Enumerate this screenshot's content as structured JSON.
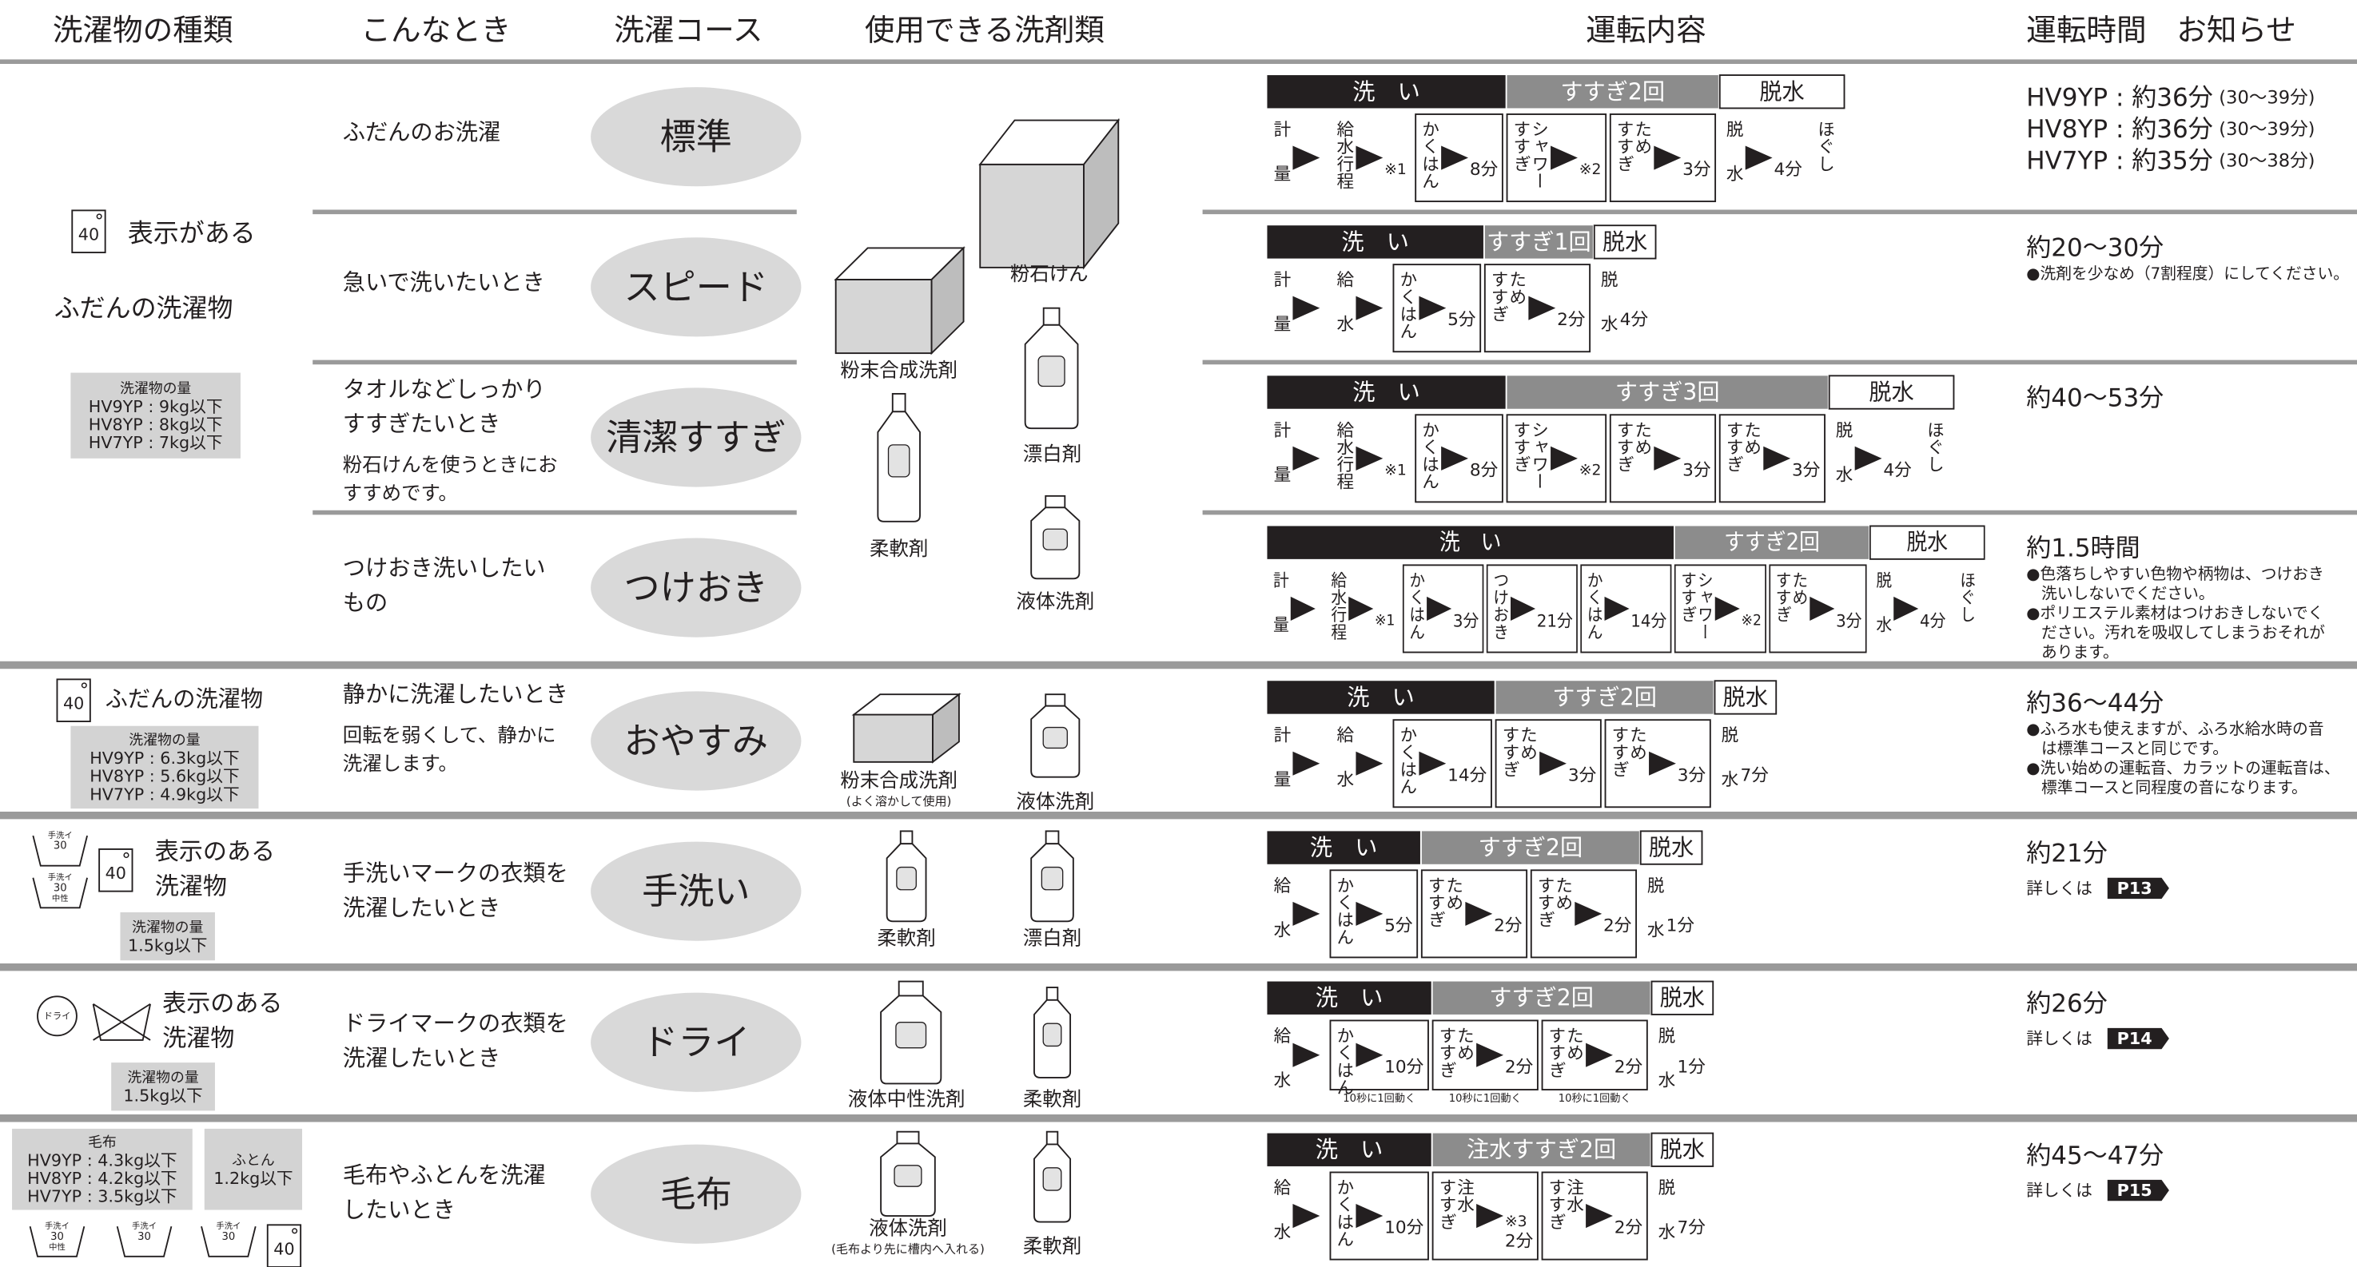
{
  "header": [
    "洗濯物の種類",
    "こんなとき",
    "洗濯コース",
    "使用できる洗剤類",
    "運転内容",
    "運転時間　お知らせ"
  ],
  "groups": [
    {
      "type": {
        "icons": [
          [
            "40"
          ]
        ],
        "labels": [
          "表示がある",
          "ふだんの洗濯物"
        ],
        "boxes": [
          [
            "洗濯物の量",
            "HV9YP : 9kg以下",
            "HV8YP : 8kg以下",
            "HV7YP : 7kg以下"
          ]
        ]
      },
      "detergents": [
        {
          "label": "粉石けん"
        },
        {
          "label": "粉末合成洗剤"
        },
        {
          "label": "漂白剤"
        },
        {
          "label": "柔軟剤"
        },
        {
          "label": "液体洗剤"
        }
      ],
      "courses": [
        {
          "situation": [
            "ふだんのお洗濯"
          ],
          "name": "標準",
          "process": [
            {
              "label": "洗　い",
              "color": "#231f20",
              "steps": [
                {
                  "lines": [
                    "計量"
                  ]
                },
                {
                  "lines": [
                    "給水行程"
                  ],
                  "mark": "※1"
                },
                {
                  "lines": [
                    "かくはん"
                  ],
                  "time": "8分"
                }
              ]
            },
            {
              "label": "すすぎ2回",
              "color": "#8c8c8c",
              "steps": [
                {
                  "lines": [
                    "シャワー",
                    "すすぎ"
                  ],
                  "mark": "※2"
                },
                {
                  "lines": [
                    "ため",
                    "すすぎ"
                  ],
                  "time": "3分"
                }
              ]
            },
            {
              "label": "脱水",
              "color": "#ffffff",
              "steps": [
                {
                  "lines": [
                    "脱水"
                  ],
                  "time": "4分"
                },
                {
                  "lines": [
                    "ほぐし"
                  ]
                }
              ]
            }
          ],
          "time": [
            {
              "main": "HV9YP : 約36分",
              "range": "(30～39分)"
            },
            {
              "main": "HV8YP : 約36分",
              "range": "(30～39分)"
            },
            {
              "main": "HV7YP : 約35分",
              "range": "(30～38分)"
            }
          ]
        },
        {
          "situation": [
            "急いで洗いたいとき"
          ],
          "name": "スピード",
          "process": [
            {
              "label": "洗　い",
              "color": "#231f20",
              "steps": [
                {
                  "lines": [
                    "計量"
                  ]
                },
                {
                  "lines": [
                    "給水"
                  ]
                },
                {
                  "lines": [
                    "かくはん"
                  ],
                  "time": "5分"
                }
              ]
            },
            {
              "label": "すすぎ1回",
              "color": "#8c8c8c",
              "steps": [
                {
                  "lines": [
                    "ため",
                    "すすぎ"
                  ],
                  "time": "2分"
                }
              ]
            },
            {
              "label": "脱水",
              "color": "#ffffff",
              "steps": [
                {
                  "lines": [
                    "脱水"
                  ],
                  "time": "4分"
                }
              ]
            }
          ],
          "time": [
            {
              "main": "約20～30分"
            }
          ],
          "notes": [
            "●洗剤を少なめ（7割程度）にしてください。"
          ]
        },
        {
          "situation": [
            "タオルなどしっかり",
            "すすぎたいとき"
          ],
          "note": [
            "粉石けんを使うときにお",
            "すすめです。"
          ],
          "name": "清潔すすぎ",
          "process": [
            {
              "label": "洗　い",
              "color": "#231f20",
              "steps": [
                {
                  "lines": [
                    "計量"
                  ]
                },
                {
                  "lines": [
                    "給水行程"
                  ],
                  "mark": "※1"
                },
                {
                  "lines": [
                    "かくはん"
                  ],
                  "time": "8分"
                }
              ]
            },
            {
              "label": "すすぎ3回",
              "color": "#8c8c8c",
              "steps": [
                {
                  "lines": [
                    "シャワー",
                    "すすぎ"
                  ],
                  "mark": "※2"
                },
                {
                  "lines": [
                    "ため",
                    "すすぎ"
                  ],
                  "time": "3分"
                },
                {
                  "lines": [
                    "ため",
                    "すすぎ"
                  ],
                  "time": "3分"
                }
              ]
            },
            {
              "label": "脱水",
              "color": "#ffffff",
              "steps": [
                {
                  "lines": [
                    "脱水"
                  ],
                  "time": "4分"
                },
                {
                  "lines": [
                    "ほぐし"
                  ]
                }
              ]
            }
          ],
          "time": [
            {
              "main": "約40～53分"
            }
          ]
        },
        {
          "situation": [
            "つけおき洗いしたい",
            "もの"
          ],
          "name": "つけおき",
          "process": [
            {
              "label": "洗　い",
              "color": "#231f20",
              "steps": [
                {
                  "lines": [
                    "計量"
                  ]
                },
                {
                  "lines": [
                    "給水行程"
                  ],
                  "mark": "※1"
                },
                {
                  "lines": [
                    "かくはん"
                  ],
                  "time": "3分"
                },
                {
                  "lines": [
                    "つけおき"
                  ],
                  "time": "21分"
                },
                {
                  "lines": [
                    "かくはん"
                  ],
                  "time": "14分"
                }
              ]
            },
            {
              "label": "すすぎ2回",
              "color": "#8c8c8c",
              "steps": [
                {
                  "lines": [
                    "シャワー",
                    "すすぎ"
                  ],
                  "mark": "※2"
                },
                {
                  "lines": [
                    "ため",
                    "すすぎ"
                  ],
                  "time": "3分"
                }
              ]
            },
            {
              "label": "脱水",
              "color": "#ffffff",
              "steps": [
                {
                  "lines": [
                    "脱水"
                  ],
                  "time": "4分"
                },
                {
                  "lines": [
                    "ほぐし"
                  ]
                }
              ]
            }
          ],
          "time": [
            {
              "main": "約1.5時間"
            }
          ],
          "notes": [
            "●色落ちしやすい色物や柄物は、つけおき",
            "洗いしないでください。",
            "●ポリエステル素材はつけおきしないでく",
            "ださい。汚れを吸収してしまうおそれが",
            "あります。"
          ]
        }
      ]
    },
    {
      "type": {
        "icons": [
          [
            "40"
          ]
        ],
        "labels": [
          "ふだんの洗濯物"
        ],
        "boxes": [
          [
            "洗濯物の量",
            "HV9YP : 6.3kg以下",
            "HV8YP : 5.6kg以下",
            "HV7YP : 4.9kg以下"
          ]
        ]
      },
      "detergents": [
        {
          "label": "粉末合成洗剤",
          "note": "(よく溶かして使用)"
        },
        {
          "label": "液体洗剤"
        }
      ],
      "courses": [
        {
          "situation": [
            "静かに洗濯したいとき"
          ],
          "note": [
            "回転を弱くして、静かに",
            "洗濯します。"
          ],
          "name": "おやすみ",
          "process": [
            {
              "label": "洗　い",
              "color": "#231f20",
              "steps": [
                {
                  "lines": [
                    "計量"
                  ]
                },
                {
                  "lines": [
                    "給水"
                  ]
                },
                {
                  "lines": [
                    "かくはん"
                  ],
                  "time": "14分"
                }
              ]
            },
            {
              "label": "すすぎ2回",
              "color": "#8c8c8c",
              "steps": [
                {
                  "lines": [
                    "ため",
                    "すすぎ"
                  ],
                  "time": "3分"
                },
                {
                  "lines": [
                    "ため",
                    "すすぎ"
                  ],
                  "time": "3分"
                }
              ]
            },
            {
              "label": "脱水",
              "color": "#ffffff",
              "steps": [
                {
                  "lines": [
                    "脱水"
                  ],
                  "time": "7分"
                }
              ]
            }
          ],
          "time": [
            {
              "main": "約36～44分"
            }
          ],
          "notes": [
            "●ふろ水も使えますが、ふろ水給水時の音",
            "は標準コースと同じです。",
            "●洗い始めの運転音、カラットの運転音は、",
            "標準コースと同程度の音になります。"
          ]
        }
      ]
    },
    {
      "type": {
        "icons": [
          [
            "手洗イ",
            "30"
          ],
          [
            "手洗イ",
            "30",
            "中性"
          ],
          [
            "40"
          ]
        ],
        "labels": [
          "表示のある",
          "洗濯物"
        ],
        "boxes": [
          [
            "洗濯物の量",
            "1.5kg以下"
          ]
        ]
      },
      "detergents": [
        {
          "label": "柔軟剤"
        },
        {
          "label": "漂白剤"
        }
      ],
      "courses": [
        {
          "situation": [
            "手洗いマークの衣類を",
            "洗濯したいとき"
          ],
          "name": "手洗い",
          "process": [
            {
              "label": "洗　い",
              "color": "#231f20",
              "steps": [
                {
                  "lines": [
                    "給水"
                  ]
                },
                {
                  "lines": [
                    "かくはん"
                  ],
                  "time": "5分"
                }
              ]
            },
            {
              "label": "すすぎ2回",
              "color": "#8c8c8c",
              "steps": [
                {
                  "lines": [
                    "ため",
                    "すすぎ"
                  ],
                  "time": "2分"
                },
                {
                  "lines": [
                    "ため",
                    "すすぎ"
                  ],
                  "time": "2分"
                }
              ]
            },
            {
              "label": "脱水",
              "color": "#ffffff",
              "steps": [
                {
                  "lines": [
                    "脱水"
                  ],
                  "time": "1分"
                }
              ]
            }
          ],
          "time": [
            {
              "main": "約21分"
            }
          ],
          "more": {
            "text": "詳しくは",
            "page": "P13"
          }
        }
      ]
    },
    {
      "type": {
        "icons": [
          [
            "ドライ"
          ]
        ],
        "labels": [
          "表示のある",
          "洗濯物"
        ],
        "boxes": [
          [
            "洗濯物の量",
            "1.5kg以下"
          ]
        ]
      },
      "detergents": [
        {
          "label": "液体中性洗剤"
        },
        {
          "label": "柔軟剤"
        }
      ],
      "courses": [
        {
          "situation": [
            "ドライマークの衣類を",
            "洗濯したいとき"
          ],
          "name": "ドライ",
          "process": [
            {
              "label": "洗　い",
              "color": "#231f20",
              "steps": [
                {
                  "lines": [
                    "給水"
                  ]
                },
                {
                  "lines": [
                    "かくはん"
                  ],
                  "time": "10分",
                  "sub": "10秒に1回動く"
                }
              ]
            },
            {
              "label": "すすぎ2回",
              "color": "#8c8c8c",
              "steps": [
                {
                  "lines": [
                    "ため",
                    "すすぎ"
                  ],
                  "time": "2分",
                  "sub": "10秒に1回動く"
                },
                {
                  "lines": [
                    "ため",
                    "すすぎ"
                  ],
                  "time": "2分",
                  "sub": "10秒に1回動く"
                }
              ]
            },
            {
              "label": "脱水",
              "color": "#ffffff",
              "steps": [
                {
                  "lines": [
                    "脱水"
                  ],
                  "time": "1分"
                }
              ]
            }
          ],
          "time": [
            {
              "main": "約26分"
            }
          ],
          "more": {
            "text": "詳しくは",
            "page": "P14"
          }
        }
      ]
    },
    {
      "type": {
        "icons": [
          [
            "手洗イ",
            "30",
            "中性"
          ],
          [
            "手洗イ",
            "30"
          ],
          [
            "手洗イ",
            "30"
          ],
          [
            "40"
          ]
        ],
        "boxes": [
          [
            "毛布",
            "HV9YP : 4.3kg以下",
            "HV8YP : 4.2kg以下",
            "HV7YP : 3.5kg以下"
          ],
          [
            "ふとん",
            "1.2kg以下"
          ]
        ]
      },
      "detergents": [
        {
          "label": "液体洗剤",
          "note": "(毛布より先に槽内へ入れる)"
        },
        {
          "label": "柔軟剤"
        }
      ],
      "courses": [
        {
          "situation": [
            "毛布やふとんを洗濯",
            "したいとき"
          ],
          "name": "毛布",
          "process": [
            {
              "label": "洗　い",
              "color": "#231f20",
              "steps": [
                {
                  "lines": [
                    "給水"
                  ]
                },
                {
                  "lines": [
                    "かくはん"
                  ],
                  "time": "10分"
                }
              ]
            },
            {
              "label": "注水すすぎ2回",
              "color": "#8c8c8c",
              "steps": [
                {
                  "lines": [
                    "注水",
                    "すすぎ"
                  ],
                  "mark": "※3",
                  "time": "2分"
                },
                {
                  "lines": [
                    "注水",
                    "すすぎ"
                  ],
                  "time": "2分"
                }
              ]
            },
            {
              "label": "脱水",
              "color": "#ffffff",
              "steps": [
                {
                  "lines": [
                    "脱水"
                  ],
                  "time": "7分"
                }
              ]
            }
          ],
          "time": [
            {
              "main": "約45～47分"
            }
          ],
          "more": {
            "text": "詳しくは",
            "page": "P15"
          }
        }
      ]
    }
  ]
}
